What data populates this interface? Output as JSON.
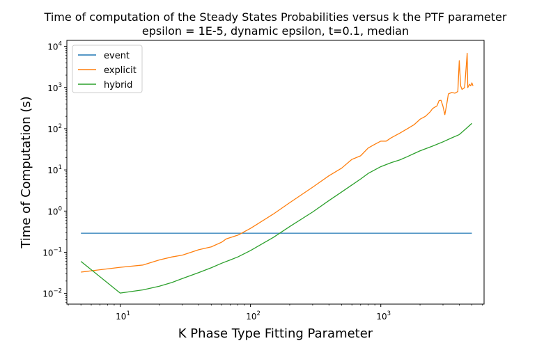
{
  "chart_data": {
    "type": "line",
    "title": [
      "Time of computation of the Steady States Probabilities versus k the PTF parameter",
      "epsilon = 1E-5, dynamic epsilon, t=0.1, median"
    ],
    "xlabel": "K Phase Type Fitting Parameter",
    "ylabel": "Time of Computation (s)",
    "xscale": "log",
    "yscale": "log",
    "xlim": [
      3.9,
      6200
    ],
    "ylim": [
      0.0055,
      14000
    ],
    "xticks": [
      {
        "base": "10",
        "exp": "1",
        "value": 10
      },
      {
        "base": "10",
        "exp": "2",
        "value": 100
      },
      {
        "base": "10",
        "exp": "3",
        "value": 1000
      }
    ],
    "yticks": [
      {
        "base": "10",
        "exp": "−2",
        "value": 0.01
      },
      {
        "base": "10",
        "exp": "−1",
        "value": 0.1
      },
      {
        "base": "10",
        "exp": "0",
        "value": 1
      },
      {
        "base": "10",
        "exp": "1",
        "value": 10
      },
      {
        "base": "10",
        "exp": "2",
        "value": 100
      },
      {
        "base": "10",
        "exp": "3",
        "value": 1000
      },
      {
        "base": "10",
        "exp": "4",
        "value": 10000
      }
    ],
    "grid": false,
    "legend_position": "top-left",
    "series": [
      {
        "name": "event",
        "color": "#1f77b4",
        "points": [
          [
            5,
            0.29
          ],
          [
            5000,
            0.29
          ]
        ]
      },
      {
        "name": "explicit",
        "color": "#ff7f0e",
        "points": [
          [
            5,
            0.033
          ],
          [
            10,
            0.043
          ],
          [
            15,
            0.049
          ],
          [
            20,
            0.065
          ],
          [
            25,
            0.077
          ],
          [
            30,
            0.085
          ],
          [
            35,
            0.1
          ],
          [
            40,
            0.115
          ],
          [
            50,
            0.135
          ],
          [
            60,
            0.175
          ],
          [
            65,
            0.21
          ],
          [
            80,
            0.26
          ],
          [
            100,
            0.38
          ],
          [
            150,
            0.85
          ],
          [
            200,
            1.6
          ],
          [
            300,
            3.8
          ],
          [
            400,
            7.2
          ],
          [
            500,
            11
          ],
          [
            600,
            18
          ],
          [
            700,
            22
          ],
          [
            800,
            34
          ],
          [
            900,
            42
          ],
          [
            1000,
            50
          ],
          [
            1100,
            50
          ],
          [
            1200,
            60
          ],
          [
            1400,
            78
          ],
          [
            1600,
            100
          ],
          [
            1800,
            125
          ],
          [
            2000,
            170
          ],
          [
            2200,
            200
          ],
          [
            2400,
            260
          ],
          [
            2500,
            310
          ],
          [
            2700,
            360
          ],
          [
            2800,
            480
          ],
          [
            2900,
            490
          ],
          [
            3000,
            350
          ],
          [
            3100,
            220
          ],
          [
            3200,
            380
          ],
          [
            3300,
            700
          ],
          [
            3500,
            760
          ],
          [
            3700,
            730
          ],
          [
            3900,
            800
          ],
          [
            4000,
            4500
          ],
          [
            4100,
            1100
          ],
          [
            4200,
            900
          ],
          [
            4400,
            1000
          ],
          [
            4600,
            6800
          ],
          [
            4650,
            1000
          ],
          [
            4800,
            1200
          ],
          [
            4900,
            1100
          ],
          [
            5000,
            1300
          ],
          [
            5100,
            1100
          ]
        ]
      },
      {
        "name": "hybrid",
        "color": "#2ca02c",
        "points": [
          [
            5,
            0.06
          ],
          [
            10,
            0.0102
          ],
          [
            15,
            0.0122
          ],
          [
            20,
            0.015
          ],
          [
            25,
            0.0185
          ],
          [
            30,
            0.023
          ],
          [
            40,
            0.032
          ],
          [
            50,
            0.042
          ],
          [
            60,
            0.054
          ],
          [
            70,
            0.065
          ],
          [
            80,
            0.077
          ],
          [
            100,
            0.11
          ],
          [
            150,
            0.23
          ],
          [
            200,
            0.42
          ],
          [
            300,
            0.95
          ],
          [
            400,
            1.8
          ],
          [
            500,
            2.9
          ],
          [
            600,
            4.3
          ],
          [
            700,
            6
          ],
          [
            800,
            8.2
          ],
          [
            1000,
            12
          ],
          [
            1200,
            15
          ],
          [
            1400,
            17.5
          ],
          [
            1600,
            21
          ],
          [
            1800,
            25
          ],
          [
            2000,
            29
          ],
          [
            2500,
            38
          ],
          [
            3000,
            48
          ],
          [
            3500,
            60
          ],
          [
            4000,
            72
          ],
          [
            4500,
            100
          ],
          [
            4800,
            120
          ],
          [
            5000,
            135
          ]
        ]
      }
    ]
  }
}
